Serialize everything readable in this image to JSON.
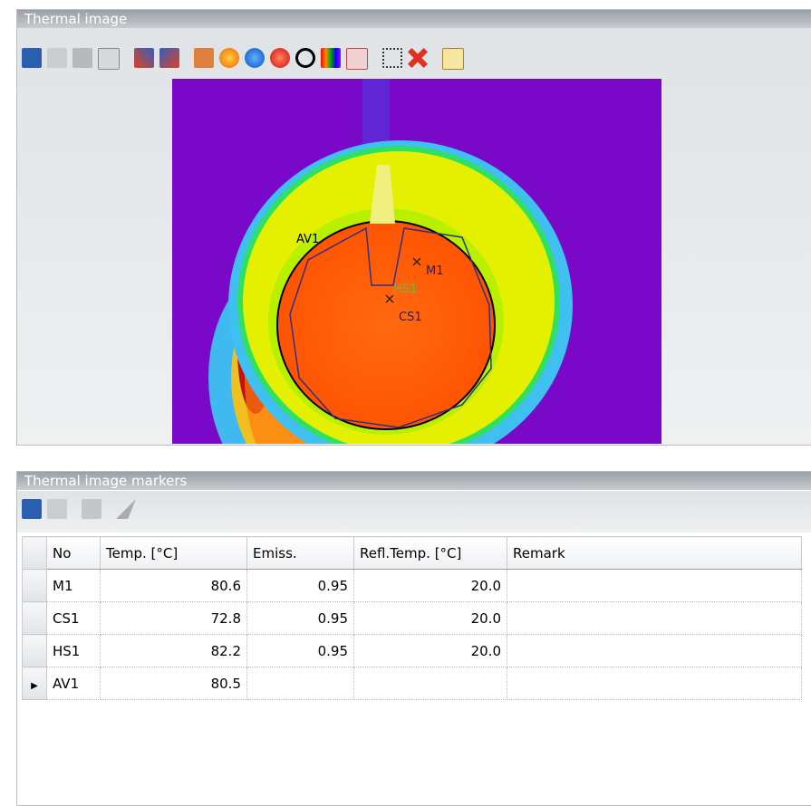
{
  "thermal_panel": {
    "title": "Thermal image",
    "markers": [
      {
        "label": "AV1"
      },
      {
        "label": "M1"
      },
      {
        "label": "HS1"
      },
      {
        "label": "CS1"
      }
    ]
  },
  "markers_panel": {
    "title": "Thermal image markers",
    "table": {
      "columns": [
        "No",
        "Temp. [°C]",
        "Emiss.",
        "Refl.Temp. [°C]",
        "Remark"
      ],
      "rows": [
        [
          "M1",
          "80.6",
          "0.95",
          "20.0"
        ],
        [
          "CS1",
          "72.8",
          "0.95",
          "20.0"
        ],
        [
          "HS1",
          "82.2",
          "0.95",
          "20.0"
        ],
        [
          "AV1",
          "80.5"
        ]
      ]
    }
  }
}
